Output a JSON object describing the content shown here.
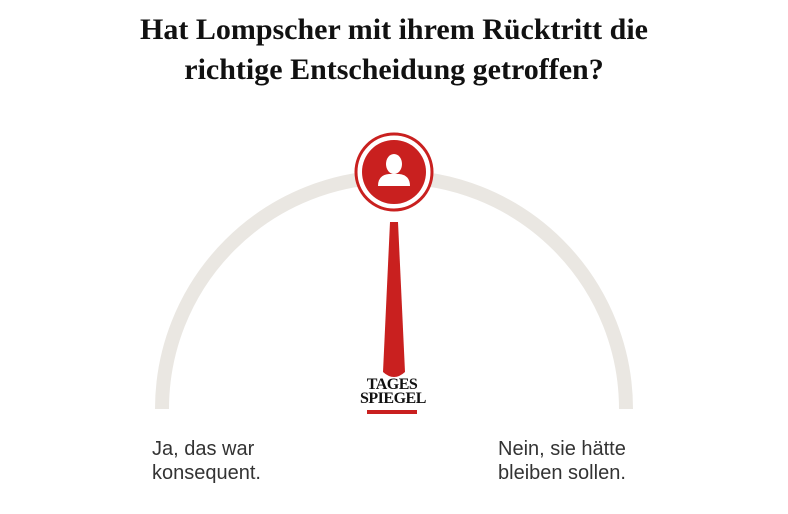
{
  "poll": {
    "question_line1": "Hat Lompscher mit ihrem Rücktritt die",
    "question_line2": "richtige Entscheidung getroffen?",
    "answer_left": {
      "line1": "Ja, das war",
      "line2": "konsequent."
    },
    "answer_right": {
      "line1": "Nein, sie hätte",
      "line2": "bleiben sollen."
    },
    "needle_position": 0.5
  },
  "logo": {
    "line1": "TAGES",
    "line2": "SPIEGEL"
  },
  "colors": {
    "accent": "#c9201f",
    "track": "#eae7e2",
    "text": "#333333",
    "title": "#111111"
  },
  "icons": {
    "avatar": "user-icon"
  }
}
